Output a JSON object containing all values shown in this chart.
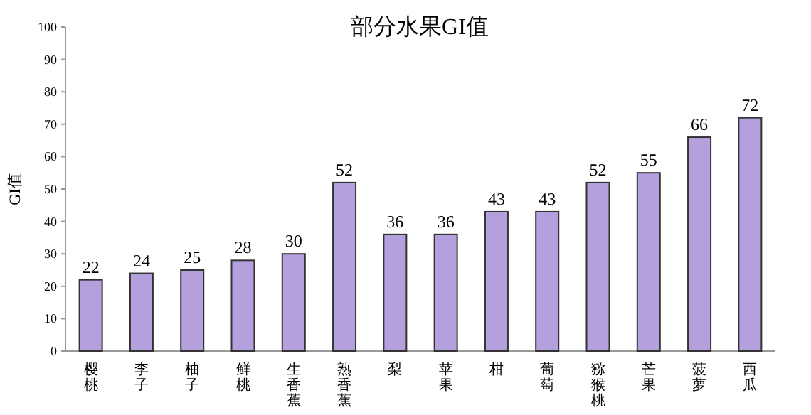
{
  "chart_data": {
    "type": "bar",
    "title": "部分水果GI值",
    "ylabel": "GI值",
    "categories": [
      "樱桃",
      "李子",
      "柚子",
      "鲜桃",
      "生香蕉",
      "熟香蕉",
      "梨",
      "苹果",
      "柑",
      "葡萄",
      "猕猴桃",
      "芒果",
      "菠萝",
      "西瓜"
    ],
    "values": [
      22,
      24,
      25,
      28,
      30,
      52,
      36,
      36,
      43,
      43,
      52,
      55,
      66,
      72
    ],
    "color": "#b3a0dc",
    "ylim": [
      0,
      100
    ],
    "yticks": [
      0,
      10,
      20,
      30,
      40,
      50,
      60,
      70,
      80,
      90,
      100
    ],
    "data_labels": true
  }
}
